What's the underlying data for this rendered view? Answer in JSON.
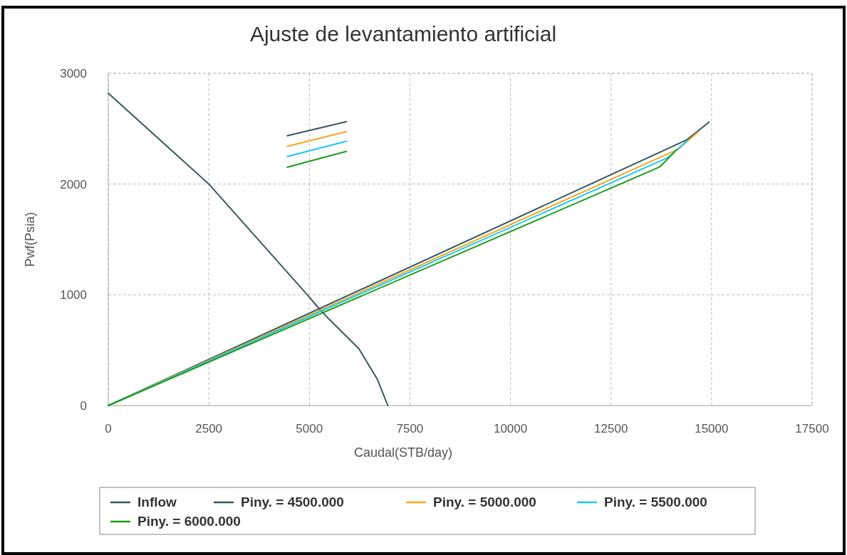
{
  "chart_data": {
    "type": "line",
    "title": "Ajuste de levantamiento artificial",
    "xlabel": "Caudal(STB/day)",
    "ylabel": "Pwf(Psia)",
    "xlim": [
      0,
      17500
    ],
    "xticks": [
      0,
      2500,
      5000,
      7500,
      10000,
      12500,
      15000,
      17500
    ],
    "ylim": [
      0,
      3000
    ],
    "yticks": [
      0,
      1000,
      2000,
      3000
    ],
    "grid": true,
    "legend": "bottom",
    "marker": "none",
    "line_style": "solid",
    "series": [
      {
        "name": "Inflow",
        "color": "#37575f",
        "x": [
          0,
          2500,
          4950,
          5210,
          5490,
          6230,
          6690,
          6950
        ],
        "values": [
          2820,
          2000,
          1000,
          888,
          780,
          514,
          238,
          0
        ]
      },
      {
        "name": "Piny. = 4500.000",
        "color": "#37575f",
        "x": [
          0,
          14390,
          14940
        ],
        "values": [
          0,
          2400,
          2560
        ]
      },
      {
        "name": "Piny. = 5000.000",
        "color": "#f5a623",
        "x": [
          0,
          14170,
          14660
        ],
        "values": [
          0,
          2315,
          2468
        ]
      },
      {
        "name": "Piny. = 5500.000",
        "color": "#1ec8f0",
        "x": [
          0,
          13910,
          14410
        ],
        "values": [
          0,
          2238,
          2396
        ]
      },
      {
        "name": "Piny. = 6000.000",
        "color": "#1a9e1a",
        "x": [
          0,
          13710,
          14140
        ],
        "values": [
          0,
          2154,
          2312
        ]
      },
      {
        "color": "#37575f",
        "x": [
          4450,
          5920
        ],
        "values": [
          2436,
          2563
        ]
      },
      {
        "color": "#f5a623",
        "x": [
          4450,
          5920
        ],
        "values": [
          2340,
          2473
        ]
      },
      {
        "color": "#1ec8f0",
        "x": [
          4450,
          5920
        ],
        "values": [
          2248,
          2387
        ]
      },
      {
        "color": "#1a9e1a",
        "x": [
          4450,
          5920
        ],
        "values": [
          2152,
          2295
        ]
      }
    ]
  }
}
